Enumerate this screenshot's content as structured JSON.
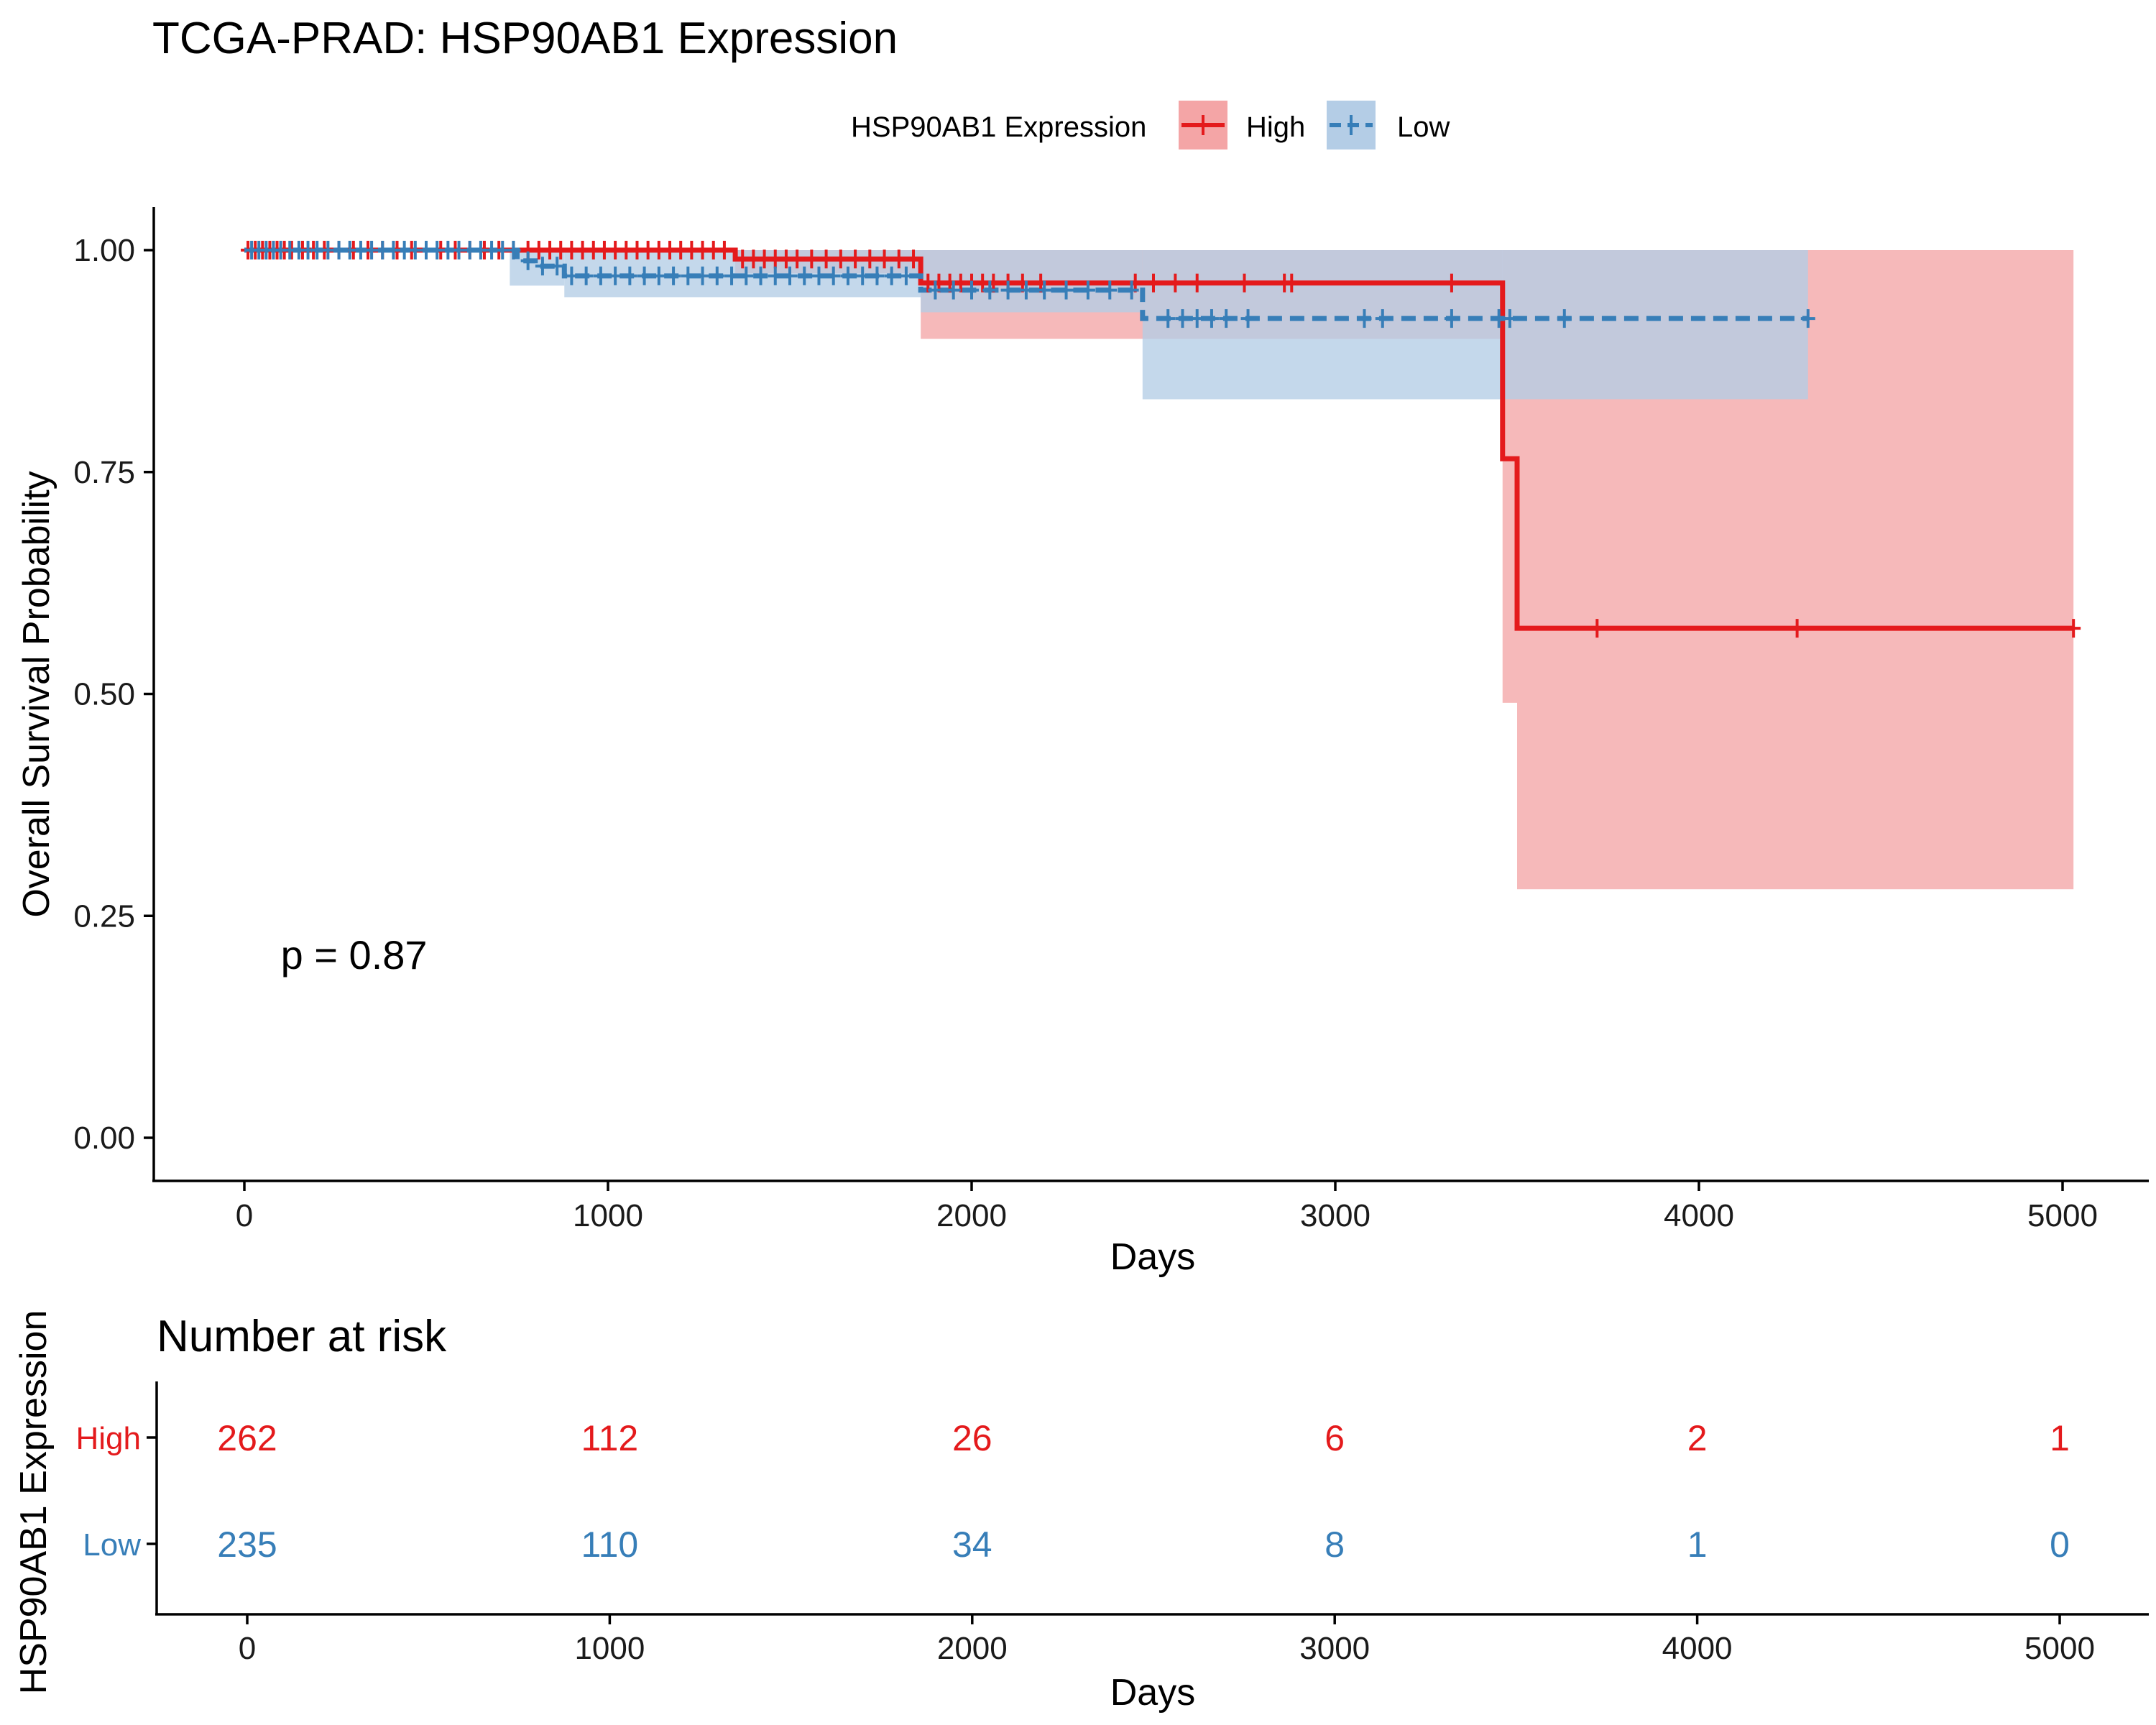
{
  "chart_data": [
    {
      "type": "line",
      "subtype": "kaplan-meier",
      "title": "TCGA-PRAD: HSP90AB1 Expression",
      "xlabel": "Days",
      "ylabel": "Overall Survival Probability",
      "xlim": [
        -250,
        5250
      ],
      "ylim": [
        -0.05,
        1.05
      ],
      "x_ticks": [
        0,
        1000,
        2000,
        3000,
        4000,
        5000
      ],
      "x_tick_labels": [
        "0",
        "1000",
        "2000",
        "3000",
        "4000",
        "5000"
      ],
      "y_ticks": [
        0,
        0.25,
        0.5,
        0.75,
        1.0
      ],
      "y_tick_labels": [
        "0.00",
        "0.25",
        "0.50",
        "0.75",
        "1.00"
      ],
      "legend": {
        "title": "HSP90AB1 Expression",
        "position": "top"
      },
      "annotation": "p = 0.87",
      "annotation_pos": {
        "x": 100,
        "y": 0.2
      },
      "series": [
        {
          "name": "High",
          "color": "#E41A1C",
          "fill": "#F4A5A6",
          "dash": false,
          "steps": [
            [
              0,
              1.0
            ],
            [
              1350,
              0.99
            ],
            [
              1860,
              0.963
            ],
            [
              3460,
              0.765
            ],
            [
              3500,
              0.574
            ],
            [
              5030,
              0.574
            ]
          ],
          "ci_bands": [
            [
              0,
              1350,
              1.0,
              1.0
            ],
            [
              1350,
              1860,
              0.974,
              1.0
            ],
            [
              1860,
              3460,
              0.9,
              1.0
            ],
            [
              3460,
              3500,
              0.49,
              1.0
            ],
            [
              3500,
              5030,
              0.28,
              1.0
            ]
          ],
          "censors": [
            10,
            30,
            50,
            70,
            90,
            110,
            130,
            160,
            190,
            220,
            260,
            300,
            340,
            380,
            420,
            460,
            500,
            540,
            580,
            620,
            660,
            700,
            740,
            780,
            810,
            840,
            870,
            900,
            930,
            960,
            990,
            1020,
            1050,
            1080,
            1110,
            1140,
            1170,
            1200,
            1230,
            1260,
            1290,
            1320,
            1370,
            1400,
            1430,
            1460,
            1490,
            1520,
            1560,
            1600,
            1640,
            1680,
            1720,
            1760,
            1800,
            1840,
            1880,
            1910,
            1940,
            1970,
            2000,
            2030,
            2060,
            2100,
            2140,
            2190,
            2450,
            2500,
            2560,
            2620,
            2750,
            2860,
            2880,
            3320,
            3720,
            4270,
            5030
          ]
        },
        {
          "name": "Low",
          "color": "#377EB8",
          "fill": "#B4CDE6",
          "dash": true,
          "steps": [
            [
              0,
              1.0
            ],
            [
              750,
              0.988
            ],
            [
              800,
              0.982
            ],
            [
              880,
              0.971
            ],
            [
              1860,
              0.955
            ],
            [
              2470,
              0.923
            ],
            [
              4300,
              0.923
            ]
          ],
          "ci_bands": [
            [
              0,
              730,
              1.0,
              1.0
            ],
            [
              730,
              880,
              0.96,
              1.0
            ],
            [
              880,
              1860,
              0.947,
              1.0
            ],
            [
              1860,
              2470,
              0.93,
              1.0
            ],
            [
              2470,
              4300,
              0.832,
              1.0
            ]
          ],
          "censors": [
            20,
            40,
            60,
            80,
            100,
            125,
            150,
            175,
            200,
            230,
            260,
            290,
            320,
            350,
            380,
            410,
            440,
            470,
            500,
            530,
            560,
            590,
            620,
            650,
            680,
            710,
            740,
            780,
            820,
            860,
            900,
            940,
            980,
            1020,
            1060,
            1100,
            1140,
            1180,
            1220,
            1260,
            1300,
            1340,
            1380,
            1420,
            1460,
            1500,
            1540,
            1580,
            1620,
            1660,
            1700,
            1740,
            1780,
            1820,
            1900,
            1950,
            2000,
            2050,
            2100,
            2150,
            2200,
            2260,
            2320,
            2380,
            2440,
            2540,
            2580,
            2620,
            2660,
            2700,
            2760,
            3080,
            3130,
            3320,
            3450,
            3480,
            3630,
            4300
          ]
        }
      ]
    },
    {
      "type": "table",
      "title": "Number at risk",
      "xlabel": "Days",
      "ylabel": "HSP90AB1 Expression",
      "x_ticks": [
        0,
        1000,
        2000,
        3000,
        4000,
        5000
      ],
      "x_tick_labels": [
        "0",
        "1000",
        "2000",
        "3000",
        "4000",
        "5000"
      ],
      "rows": [
        {
          "name": "High",
          "color": "#E41A1C",
          "values": [
            "262",
            "112",
            "26",
            "6",
            "2",
            "1"
          ]
        },
        {
          "name": "Low",
          "color": "#377EB8",
          "values": [
            "235",
            "110",
            "34",
            "8",
            "1",
            "0"
          ]
        }
      ]
    }
  ]
}
